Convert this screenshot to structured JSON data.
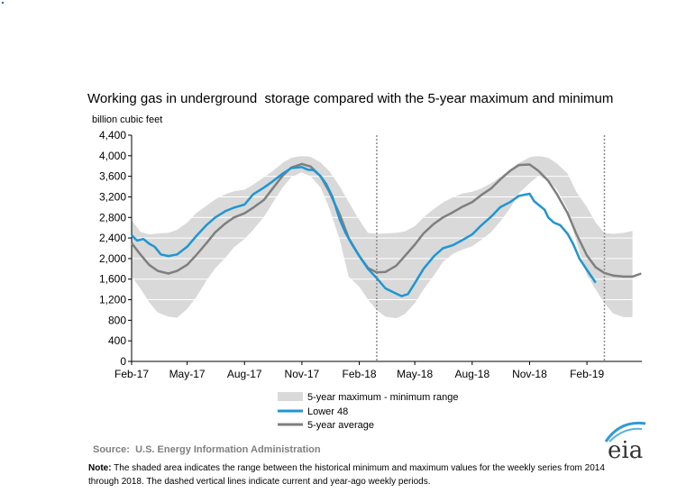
{
  "chart_data": {
    "type": "area",
    "title": "Working gas in underground  storage compared with the 5-year maximum and minimum",
    "ylabel": "billion cubic feet",
    "xlabel": "",
    "ylim": [
      0,
      4400
    ],
    "yticks": [
      "0",
      "400",
      "800",
      "1,200",
      "1,600",
      "2,000",
      "2,400",
      "2,800",
      "3,200",
      "3,600",
      "4,000",
      "4,400"
    ],
    "xticks": [
      {
        "label": "Feb-17",
        "x": "2017-02-01"
      },
      {
        "label": "May-17",
        "x": "2017-05-01"
      },
      {
        "label": "Aug-17",
        "x": "2017-08-01"
      },
      {
        "label": "Nov-17",
        "x": "2017-11-01"
      },
      {
        "label": "Feb-18",
        "x": "2018-02-01"
      },
      {
        "label": "May-18",
        "x": "2018-05-01"
      },
      {
        "label": "Aug-18",
        "x": "2018-08-01"
      },
      {
        "label": "Nov-18",
        "x": "2018-11-01"
      },
      {
        "label": "Feb-19",
        "x": "2019-02-01"
      }
    ],
    "xlim": [
      "2017-02-01",
      "2019-04-30"
    ],
    "grid": "horizontal",
    "vertical_markers": [
      "2018-03-01",
      "2019-03-01"
    ],
    "legend": [
      {
        "label": "5-year maximum - minimum range",
        "kind": "range",
        "color": "#d9d9d9"
      },
      {
        "label": "Lower 48",
        "kind": "line",
        "color": "#1f96d3"
      },
      {
        "label": "5-year average",
        "kind": "line",
        "color": "#7f7f7f"
      }
    ],
    "range_band": {
      "x": [
        "2017-02-01",
        "2017-02-15",
        "2017-03-01",
        "2017-03-15",
        "2017-04-01",
        "2017-04-15",
        "2017-05-01",
        "2017-05-15",
        "2017-06-01",
        "2017-06-15",
        "2017-07-01",
        "2017-07-15",
        "2017-08-01",
        "2017-08-15",
        "2017-09-01",
        "2017-09-15",
        "2017-10-01",
        "2017-10-15",
        "2017-11-01",
        "2017-11-15",
        "2017-12-01",
        "2017-12-15",
        "2018-01-01",
        "2018-01-15",
        "2018-02-01",
        "2018-02-15",
        "2018-03-01",
        "2018-03-15",
        "2018-04-01",
        "2018-04-15",
        "2018-05-01",
        "2018-05-15",
        "2018-06-01",
        "2018-06-15",
        "2018-07-01",
        "2018-07-15",
        "2018-08-01",
        "2018-08-15",
        "2018-09-01",
        "2018-09-15",
        "2018-10-01",
        "2018-10-15",
        "2018-11-01",
        "2018-11-15",
        "2018-12-01",
        "2018-12-15",
        "2019-01-01",
        "2019-01-15",
        "2019-02-01",
        "2019-02-15",
        "2019-03-01",
        "2019-03-15",
        "2019-04-01",
        "2019-04-15"
      ],
      "max": [
        2750,
        2520,
        2470,
        2490,
        2500,
        2560,
        2700,
        2880,
        3030,
        3150,
        3250,
        3310,
        3340,
        3440,
        3580,
        3700,
        3860,
        3960,
        4000,
        3980,
        3870,
        3700,
        3400,
        3100,
        2750,
        2500,
        2480,
        2490,
        2500,
        2530,
        2630,
        2800,
        2970,
        3090,
        3190,
        3260,
        3300,
        3360,
        3470,
        3590,
        3730,
        3860,
        3970,
        4000,
        3960,
        3850,
        3650,
        3300,
        3000,
        2700,
        2500,
        2480,
        2500,
        2540
      ],
      "min": [
        1650,
        1420,
        1150,
        950,
        870,
        850,
        1020,
        1240,
        1570,
        1810,
        2010,
        2220,
        2380,
        2560,
        2810,
        3080,
        3380,
        3580,
        3680,
        3600,
        3380,
        2980,
        2350,
        1650,
        1450,
        1200,
        1000,
        870,
        840,
        920,
        1130,
        1400,
        1680,
        1930,
        2090,
        2170,
        2240,
        2360,
        2520,
        2720,
        2980,
        3270,
        3470,
        3600,
        3530,
        3340,
        2960,
        2340,
        1680,
        1400,
        1130,
        930,
        860,
        860
      ]
    },
    "series": [
      {
        "name": "5-year average",
        "color": "#7f7f7f",
        "x": [
          "2017-02-01",
          "2017-02-15",
          "2017-03-01",
          "2017-03-15",
          "2017-04-01",
          "2017-04-15",
          "2017-05-01",
          "2017-05-15",
          "2017-06-01",
          "2017-06-15",
          "2017-07-01",
          "2017-07-15",
          "2017-08-01",
          "2017-08-15",
          "2017-09-01",
          "2017-09-15",
          "2017-10-01",
          "2017-10-15",
          "2017-11-01",
          "2017-11-15",
          "2017-12-01",
          "2017-12-15",
          "2018-01-01",
          "2018-01-15",
          "2018-02-01",
          "2018-02-15",
          "2018-03-01",
          "2018-03-15",
          "2018-04-01",
          "2018-04-15",
          "2018-05-01",
          "2018-05-15",
          "2018-06-01",
          "2018-06-15",
          "2018-07-01",
          "2018-07-15",
          "2018-08-01",
          "2018-08-15",
          "2018-09-01",
          "2018-09-15",
          "2018-10-01",
          "2018-10-15",
          "2018-11-01",
          "2018-11-15",
          "2018-12-01",
          "2018-12-15",
          "2019-01-01",
          "2019-01-15",
          "2019-02-01",
          "2019-02-15",
          "2019-03-01",
          "2019-03-15",
          "2019-04-01",
          "2019-04-15",
          "2019-04-29"
        ],
        "values": [
          2300,
          2080,
          1880,
          1760,
          1710,
          1760,
          1880,
          2060,
          2300,
          2510,
          2680,
          2800,
          2880,
          2990,
          3140,
          3360,
          3610,
          3770,
          3840,
          3790,
          3600,
          3300,
          2850,
          2400,
          2050,
          1820,
          1730,
          1740,
          1860,
          2050,
          2270,
          2490,
          2680,
          2800,
          2900,
          3000,
          3100,
          3230,
          3370,
          3540,
          3710,
          3820,
          3830,
          3710,
          3510,
          3250,
          2880,
          2480,
          2060,
          1830,
          1720,
          1670,
          1650,
          1650,
          1710
        ]
      },
      {
        "name": "Lower 48",
        "color": "#1f96d3",
        "x": [
          "2017-02-01",
          "2017-02-10",
          "2017-02-20",
          "2017-03-01",
          "2017-03-10",
          "2017-03-20",
          "2017-04-01",
          "2017-04-15",
          "2017-05-01",
          "2017-05-15",
          "2017-06-01",
          "2017-06-15",
          "2017-07-01",
          "2017-07-15",
          "2017-08-01",
          "2017-08-15",
          "2017-09-01",
          "2017-09-15",
          "2017-10-01",
          "2017-10-15",
          "2017-11-01",
          "2017-11-10",
          "2017-11-20",
          "2017-12-01",
          "2017-12-10",
          "2017-12-20",
          "2018-01-01",
          "2018-01-10",
          "2018-01-20",
          "2018-02-01",
          "2018-02-15",
          "2018-03-01",
          "2018-03-15",
          "2018-04-01",
          "2018-04-10",
          "2018-04-20",
          "2018-05-01",
          "2018-05-15",
          "2018-06-01",
          "2018-06-15",
          "2018-07-01",
          "2018-07-15",
          "2018-08-01",
          "2018-08-15",
          "2018-09-01",
          "2018-09-15",
          "2018-10-01",
          "2018-10-15",
          "2018-11-01",
          "2018-11-08",
          "2018-11-15",
          "2018-11-25",
          "2018-12-01",
          "2018-12-10",
          "2018-12-20",
          "2019-01-01",
          "2019-01-10",
          "2019-01-20",
          "2019-02-01",
          "2019-02-15"
        ],
        "values": [
          2450,
          2350,
          2380,
          2290,
          2230,
          2080,
          2050,
          2080,
          2230,
          2430,
          2650,
          2800,
          2920,
          2990,
          3050,
          3250,
          3380,
          3500,
          3650,
          3760,
          3780,
          3730,
          3720,
          3600,
          3450,
          3200,
          2750,
          2500,
          2280,
          2050,
          1800,
          1620,
          1420,
          1320,
          1270,
          1310,
          1520,
          1800,
          2050,
          2200,
          2260,
          2350,
          2470,
          2640,
          2820,
          3000,
          3100,
          3220,
          3260,
          3120,
          3050,
          2950,
          2800,
          2700,
          2650,
          2480,
          2280,
          2000,
          1780,
          1530
        ]
      }
    ],
    "legend_labels": {
      "range": "5-year maximum - minimum range",
      "lower48": "Lower 48",
      "avg": "5-year average"
    }
  },
  "footer": {
    "source": "Source:  U.S. Energy Information Administration",
    "note_bold": "Note:",
    "note_line1": " The shaded area indicates the range between the historical minimum and maximum values for the weekly series from 2014",
    "note_line2": "through 2018. The dashed vertical lines indicate current and year-ago weekly periods.",
    "logo_text": "eia"
  }
}
